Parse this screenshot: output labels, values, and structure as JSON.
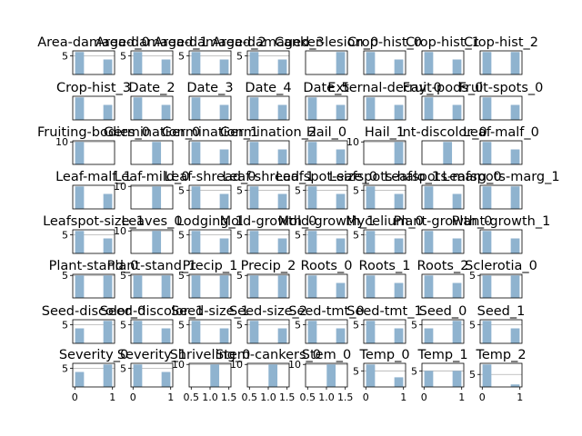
{
  "chart_data": {
    "type": "bar",
    "grid": true,
    "bar_color": "#8fb3cf",
    "panels": [
      {
        "title": "Area-damaged_0",
        "values": [
          6,
          0,
          0,
          4
        ],
        "ylim": [
          0,
          6.3
        ],
        "yticks": [
          5
        ],
        "xticks": []
      },
      {
        "title": "Area-damaged_1",
        "values": [
          6,
          0,
          0,
          4
        ],
        "ylim": [
          0,
          6.3
        ],
        "yticks": [
          5
        ],
        "xticks": []
      },
      {
        "title": "Area-damaged_2",
        "values": [
          6,
          0,
          0,
          4
        ],
        "ylim": [
          0,
          6.3
        ],
        "yticks": [
          5
        ],
        "xticks": []
      },
      {
        "title": "Area-damaged_3",
        "values": [
          6,
          0,
          0,
          4
        ],
        "ylim": [
          0,
          6.3
        ],
        "yticks": [
          5
        ],
        "xticks": []
      },
      {
        "title": "Canker-lesion_0",
        "values": [
          0,
          0,
          0,
          10
        ],
        "ylim": [
          0,
          10.5
        ],
        "yticks": [],
        "xticks": []
      },
      {
        "title": "Crop-hist_0",
        "values": [
          6,
          0,
          0,
          4
        ],
        "ylim": [
          0,
          6.3
        ],
        "yticks": [],
        "xticks": []
      },
      {
        "title": "Crop-hist_1",
        "values": [
          6,
          0,
          0,
          4
        ],
        "ylim": [
          0,
          6.3
        ],
        "yticks": [],
        "xticks": []
      },
      {
        "title": "Crop-hist_2",
        "values": [
          6,
          0,
          0,
          6
        ],
        "ylim": [
          0,
          6.3
        ],
        "yticks": [],
        "xticks": []
      },
      {
        "title": "Crop-hist_3",
        "values": [
          6,
          0,
          0,
          4
        ],
        "ylim": [
          0,
          6.3
        ],
        "yticks": [],
        "xticks": []
      },
      {
        "title": "Date_2",
        "values": [
          6,
          0,
          0,
          4
        ],
        "ylim": [
          0,
          6.3
        ],
        "yticks": [],
        "xticks": []
      },
      {
        "title": "Date_3",
        "values": [
          6,
          0,
          0,
          4
        ],
        "ylim": [
          0,
          6.3
        ],
        "yticks": [],
        "xticks": []
      },
      {
        "title": "Date_4",
        "values": [
          6,
          0,
          0,
          4
        ],
        "ylim": [
          0,
          6.3
        ],
        "yticks": [],
        "xticks": []
      },
      {
        "title": "Date_5",
        "values": [
          6,
          0,
          0,
          4
        ],
        "ylim": [
          0,
          6.3
        ],
        "yticks": [],
        "xticks": []
      },
      {
        "title": "External-decay_0",
        "values": [
          6,
          0,
          0,
          4
        ],
        "ylim": [
          0,
          6.3
        ],
        "yticks": [],
        "xticks": []
      },
      {
        "title": "Fruit-pods_0",
        "values": [
          6,
          0,
          0,
          4
        ],
        "ylim": [
          0,
          6.3
        ],
        "yticks": [],
        "xticks": []
      },
      {
        "title": "Fruit-spots_0",
        "values": [
          6,
          0,
          0,
          4
        ],
        "ylim": [
          0,
          6.3
        ],
        "yticks": [],
        "xticks": []
      },
      {
        "title": "Fruiting-bodies_0",
        "values": [
          10,
          0,
          0,
          0
        ],
        "ylim": [
          0,
          10.5
        ],
        "yticks": [
          10
        ],
        "xticks": []
      },
      {
        "title": "Germination_0",
        "values": [
          0,
          0,
          10,
          0
        ],
        "ylim": [
          0,
          10.5
        ],
        "yticks": [],
        "xticks": []
      },
      {
        "title": "Germination_1",
        "values": [
          6,
          0,
          0,
          4
        ],
        "ylim": [
          0,
          6.3
        ],
        "yticks": [],
        "xticks": []
      },
      {
        "title": "Germination_2",
        "values": [
          6,
          0,
          0,
          4
        ],
        "ylim": [
          0,
          6.3
        ],
        "yticks": [],
        "xticks": []
      },
      {
        "title": "Hail_0",
        "values": [
          6,
          0,
          0,
          4
        ],
        "ylim": [
          0,
          6.3
        ],
        "yticks": [],
        "xticks": []
      },
      {
        "title": "Hail_1",
        "values": [
          0,
          0,
          0,
          10
        ],
        "ylim": [
          0,
          10.5
        ],
        "yticks": [
          10
        ],
        "xticks": []
      },
      {
        "title": "Int-discolor_0",
        "values": [
          0,
          0,
          10,
          0
        ],
        "ylim": [
          0,
          10.5
        ],
        "yticks": [],
        "xticks": []
      },
      {
        "title": "Leaf-malf_0",
        "values": [
          6,
          0,
          0,
          4
        ],
        "ylim": [
          0,
          6.3
        ],
        "yticks": [],
        "xticks": []
      },
      {
        "title": "Leaf-malf_1",
        "values": [
          6,
          0,
          0,
          4
        ],
        "ylim": [
          0,
          6.3
        ],
        "yticks": [],
        "xticks": []
      },
      {
        "title": "Leaf-mild_0",
        "values": [
          0,
          0,
          10,
          0
        ],
        "ylim": [
          0,
          10.5
        ],
        "yticks": [
          10
        ],
        "xticks": []
      },
      {
        "title": "Leaf-shread_0",
        "values": [
          6,
          0,
          0,
          4
        ],
        "ylim": [
          0,
          6.3
        ],
        "yticks": [
          5
        ],
        "xticks": []
      },
      {
        "title": "Leaf-shread_1",
        "values": [
          6,
          0,
          0,
          4
        ],
        "ylim": [
          0,
          6.3
        ],
        "yticks": [
          5
        ],
        "xticks": []
      },
      {
        "title": "Leafspot-size_0",
        "values": [
          6,
          0,
          0,
          4
        ],
        "ylim": [
          0,
          6.3
        ],
        "yticks": [
          5
        ],
        "xticks": []
      },
      {
        "title": "Leafspots-halo_1",
        "values": [
          6,
          0,
          0,
          4
        ],
        "ylim": [
          0,
          6.3
        ],
        "yticks": [
          5
        ],
        "xticks": []
      },
      {
        "title": "Leafspots-marg_0",
        "values": [
          6,
          0,
          0,
          4
        ],
        "ylim": [
          0,
          6.3
        ],
        "yticks": [],
        "xticks": []
      },
      {
        "title": "Leafspots-marg_1",
        "values": [
          6,
          0,
          0,
          6
        ],
        "ylim": [
          0,
          6.3
        ],
        "yticks": [],
        "xticks": []
      },
      {
        "title": "Leafspot-size_1",
        "values": [
          6,
          0,
          0,
          4
        ],
        "ylim": [
          0,
          6.3
        ],
        "yticks": [
          5
        ],
        "xticks": []
      },
      {
        "title": "Leaves_0",
        "values": [
          0,
          0,
          10,
          0
        ],
        "ylim": [
          0,
          10.5
        ],
        "yticks": [
          10
        ],
        "xticks": []
      },
      {
        "title": "Lodging_1",
        "values": [
          6,
          0,
          0,
          4
        ],
        "ylim": [
          0,
          6.3
        ],
        "yticks": [
          5
        ],
        "xticks": []
      },
      {
        "title": "Mold-growth_0",
        "values": [
          6,
          0,
          0,
          4
        ],
        "ylim": [
          0,
          6.3
        ],
        "yticks": [
          5
        ],
        "xticks": []
      },
      {
        "title": "Mold-growth_1",
        "values": [
          6,
          0,
          0,
          4
        ],
        "ylim": [
          0,
          6.3
        ],
        "yticks": [
          5
        ],
        "xticks": []
      },
      {
        "title": "Mycelium_0",
        "values": [
          6,
          0,
          0,
          4
        ],
        "ylim": [
          0,
          6.3
        ],
        "yticks": [
          5
        ],
        "xticks": []
      },
      {
        "title": "Plant-growth_0",
        "values": [
          6,
          0,
          0,
          4
        ],
        "ylim": [
          0,
          6.3
        ],
        "yticks": [],
        "xticks": []
      },
      {
        "title": "Plant-growth_1",
        "values": [
          6,
          0,
          0,
          4
        ],
        "ylim": [
          0,
          6.3
        ],
        "yticks": [],
        "xticks": []
      },
      {
        "title": "Plant-stand_0",
        "values": [
          5,
          0,
          0,
          5
        ],
        "ylim": [
          0,
          5.25
        ],
        "yticks": [
          5
        ],
        "xticks": []
      },
      {
        "title": "Plant-stand_1",
        "values": [
          5,
          0,
          0,
          5
        ],
        "ylim": [
          0,
          5.25
        ],
        "yticks": [
          5
        ],
        "xticks": []
      },
      {
        "title": "Precip_1",
        "values": [
          5,
          0,
          0,
          5
        ],
        "ylim": [
          0,
          5.25
        ],
        "yticks": [
          5
        ],
        "xticks": []
      },
      {
        "title": "Precip_2",
        "values": [
          5,
          0,
          0,
          5
        ],
        "ylim": [
          0,
          5.25
        ],
        "yticks": [
          5
        ],
        "xticks": []
      },
      {
        "title": "Roots_0",
        "values": [
          6,
          0,
          0,
          4
        ],
        "ylim": [
          0,
          6.3
        ],
        "yticks": [],
        "xticks": []
      },
      {
        "title": "Roots_1",
        "values": [
          6,
          0,
          0,
          4
        ],
        "ylim": [
          0,
          6.3
        ],
        "yticks": [],
        "xticks": []
      },
      {
        "title": "Roots_2",
        "values": [
          6,
          0,
          0,
          4
        ],
        "ylim": [
          0,
          6.3
        ],
        "yticks": [],
        "xticks": []
      },
      {
        "title": "Sclerotia_0",
        "values": [
          5,
          0,
          0,
          5
        ],
        "ylim": [
          0,
          5.25
        ],
        "yticks": [
          5
        ],
        "xticks": []
      },
      {
        "title": "Seed-discolor_0",
        "values": [
          4,
          0,
          0,
          6
        ],
        "ylim": [
          0,
          6.3
        ],
        "yticks": [
          5
        ],
        "xticks": []
      },
      {
        "title": "Seed-discolor_1",
        "values": [
          6,
          0,
          0,
          4
        ],
        "ylim": [
          0,
          6.3
        ],
        "yticks": [
          5
        ],
        "xticks": []
      },
      {
        "title": "Seed-size_1",
        "values": [
          6,
          0,
          0,
          4
        ],
        "ylim": [
          0,
          6.3
        ],
        "yticks": [
          5
        ],
        "xticks": []
      },
      {
        "title": "Seed-size_2",
        "values": [
          6,
          0,
          0,
          4
        ],
        "ylim": [
          0,
          6.3
        ],
        "yticks": [
          5
        ],
        "xticks": []
      },
      {
        "title": "Seed-tmt_0",
        "values": [
          6,
          0,
          0,
          4
        ],
        "ylim": [
          0,
          6.3
        ],
        "yticks": [
          5
        ],
        "xticks": []
      },
      {
        "title": "Seed-tmt_1",
        "values": [
          6,
          0,
          0,
          4
        ],
        "ylim": [
          0,
          6.3
        ],
        "yticks": [
          5
        ],
        "xticks": []
      },
      {
        "title": "Seed_0",
        "values": [
          4,
          0,
          0,
          6
        ],
        "ylim": [
          0,
          6.3
        ],
        "yticks": [
          5
        ],
        "xticks": []
      },
      {
        "title": "Seed_1",
        "values": [
          6,
          0,
          0,
          4
        ],
        "ylim": [
          0,
          6.3
        ],
        "yticks": [
          5
        ],
        "xticks": []
      },
      {
        "title": "Severity_0",
        "values": [
          4,
          0,
          0,
          6
        ],
        "ylim": [
          0,
          6.3
        ],
        "yticks": [
          5
        ],
        "xticks": [
          "0",
          "1"
        ],
        "xlim": [
          0,
          1
        ]
      },
      {
        "title": "Severity_1",
        "values": [
          6,
          0,
          0,
          4
        ],
        "ylim": [
          0,
          6.3
        ],
        "yticks": [
          5
        ],
        "xticks": [
          "0",
          "1"
        ],
        "xlim": [
          0,
          1
        ]
      },
      {
        "title": "Shriveling_0",
        "values": [
          0,
          0,
          10,
          0
        ],
        "ylim": [
          0,
          10.5
        ],
        "yticks": [
          10
        ],
        "xticks": [
          "0.5",
          "1.0",
          "1.5"
        ],
        "xlim": [
          0.5,
          1.5
        ]
      },
      {
        "title": "Stem-cankers_0",
        "values": [
          0,
          0,
          10,
          0
        ],
        "ylim": [
          0,
          10.5
        ],
        "yticks": [
          10
        ],
        "xticks": [
          "0.5",
          "1.0",
          "1.5"
        ],
        "xlim": [
          0.5,
          1.5
        ]
      },
      {
        "title": "Stem_0",
        "values": [
          0,
          0,
          10,
          0
        ],
        "ylim": [
          0,
          10.5
        ],
        "yticks": [
          10
        ],
        "xticks": [
          "0.5",
          "1.0",
          "1.5"
        ],
        "xlim": [
          0.5,
          1.5
        ]
      },
      {
        "title": "Temp_0",
        "values": [
          7,
          0,
          0,
          3
        ],
        "ylim": [
          0,
          7.35
        ],
        "yticks": [
          5
        ],
        "xticks": [
          "0",
          "1"
        ],
        "xlim": [
          0,
          1
        ]
      },
      {
        "title": "Temp_1",
        "values": [
          5,
          0,
          0,
          5
        ],
        "ylim": [
          0,
          7.35
        ],
        "yticks": [
          5
        ],
        "xticks": [
          "0",
          "1"
        ],
        "xlim": [
          0,
          1
        ]
      },
      {
        "title": "Temp_2",
        "values": [
          9,
          0,
          0,
          1
        ],
        "ylim": [
          0,
          9.45
        ],
        "yticks": [
          5
        ],
        "xticks": [
          "0",
          "1"
        ],
        "xlim": [
          0,
          1
        ]
      }
    ]
  }
}
